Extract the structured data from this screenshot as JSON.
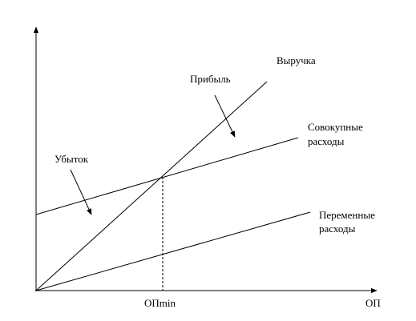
{
  "labels": {
    "revenue": "Выручка",
    "profit": "Прибыль",
    "total_costs": [
      "Совокупные",
      "расходы"
    ],
    "loss": "Убыток",
    "variable_costs": [
      "Переменные",
      "расходы"
    ],
    "break_even": "ОПmin",
    "x_axis": "ОП"
  }
}
